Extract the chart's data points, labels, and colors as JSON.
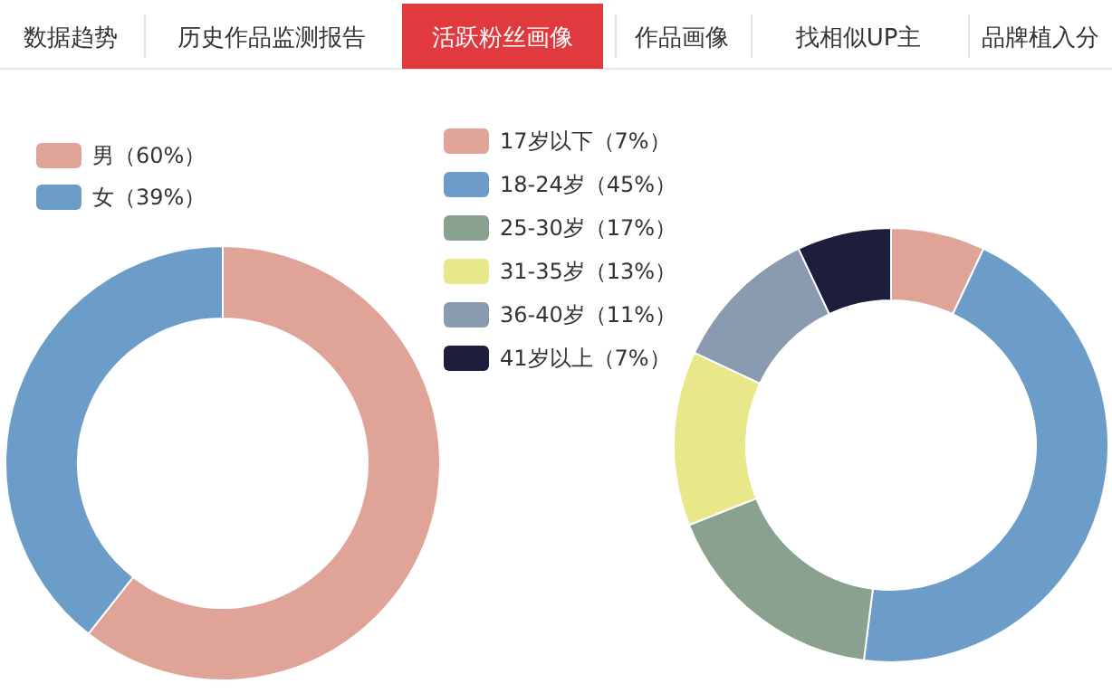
{
  "chart_data": [
    {
      "type": "other",
      "annotations": [
        "数据趋势",
        "历史作品监测报告",
        "活跃粉丝画像",
        "作品画像",
        "找相似UP主",
        "品牌植入分"
      ]
    },
    {
      "type": "donut",
      "categories": [
        "男（60%）",
        "女（39%）"
      ],
      "values": [
        60,
        39
      ],
      "colors": [
        "#e0a397",
        "#6b9dc8"
      ],
      "legend": "top left"
    },
    {
      "type": "donut",
      "categories": [
        "17岁以下（7%）",
        "18-24岁（45%）",
        "25-30岁（17%）",
        "31-35岁（13%）",
        "36-40岁（11%）",
        "41岁以上（7%）"
      ],
      "values": [
        7,
        45,
        17,
        13,
        11,
        7
      ],
      "colors": [
        "#e0a397",
        "#6b9dc8",
        "#8aa190",
        "#e8e88a",
        "#8a9bb0",
        "#1d1e3c"
      ],
      "legend": "top left"
    }
  ]
}
